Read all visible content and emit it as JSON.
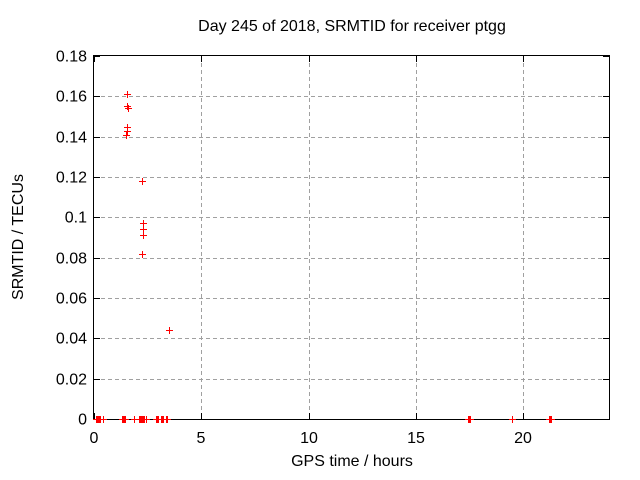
{
  "window": {
    "background": "#ffffff"
  },
  "chart_data": {
    "type": "scatter",
    "title": "Day 245 of 2018, SRMTID for receiver ptgg",
    "xlabel": "GPS time / hours",
    "ylabel": "SRMTID / TECUs",
    "xlim": [
      0,
      24
    ],
    "ylim": [
      0,
      0.18
    ],
    "xticks": {
      "values": [
        0,
        5,
        10,
        15,
        20
      ],
      "labels": [
        "0",
        "5",
        "10",
        "15",
        "20"
      ]
    },
    "yticks": {
      "values": [
        0,
        0.02,
        0.04,
        0.06,
        0.08,
        0.1,
        0.12,
        0.14,
        0.16,
        0.18
      ],
      "labels": [
        "0",
        "0.02",
        "0.04",
        "0.06",
        "0.08",
        "0.1",
        "0.12",
        "0.14",
        "0.16",
        "0.18"
      ]
    },
    "grid": true,
    "legend": false,
    "marker": "plus",
    "colors": {
      "marker": "#ff0000",
      "grid": "#a0a0a0",
      "axis": "#000000",
      "text": "#000000",
      "background": "#ffffff"
    },
    "points": [
      [
        1.55,
        0.161
      ],
      [
        1.52,
        0.155
      ],
      [
        1.57,
        0.154
      ],
      [
        1.52,
        0.145
      ],
      [
        1.55,
        0.143
      ],
      [
        1.49,
        0.141
      ],
      [
        2.22,
        0.118
      ],
      [
        2.27,
        0.097
      ],
      [
        2.29,
        0.094
      ],
      [
        2.28,
        0.091
      ],
      [
        2.25,
        0.082
      ],
      [
        3.5,
        0.044
      ],
      [
        0.1,
        0
      ],
      [
        0.14,
        0
      ],
      [
        0.18,
        0
      ],
      [
        0.22,
        0
      ],
      [
        0.3,
        0
      ],
      [
        0.42,
        0
      ],
      [
        1.3,
        0
      ],
      [
        1.35,
        0
      ],
      [
        1.4,
        0
      ],
      [
        1.45,
        0
      ],
      [
        1.85,
        0
      ],
      [
        2.1,
        0
      ],
      [
        2.14,
        0
      ],
      [
        2.18,
        0
      ],
      [
        2.26,
        0
      ],
      [
        2.3,
        0
      ],
      [
        2.34,
        0
      ],
      [
        2.4,
        0
      ],
      [
        2.9,
        0
      ],
      [
        2.94,
        0
      ],
      [
        2.98,
        0
      ],
      [
        3.12,
        0
      ],
      [
        3.16,
        0
      ],
      [
        3.2,
        0
      ],
      [
        3.36,
        0
      ],
      [
        3.4,
        0
      ],
      [
        17.42,
        0
      ],
      [
        17.46,
        0
      ],
      [
        17.5,
        0
      ],
      [
        19.5,
        0
      ],
      [
        21.22,
        0
      ],
      [
        21.26,
        0
      ],
      [
        21.3,
        0
      ]
    ]
  }
}
